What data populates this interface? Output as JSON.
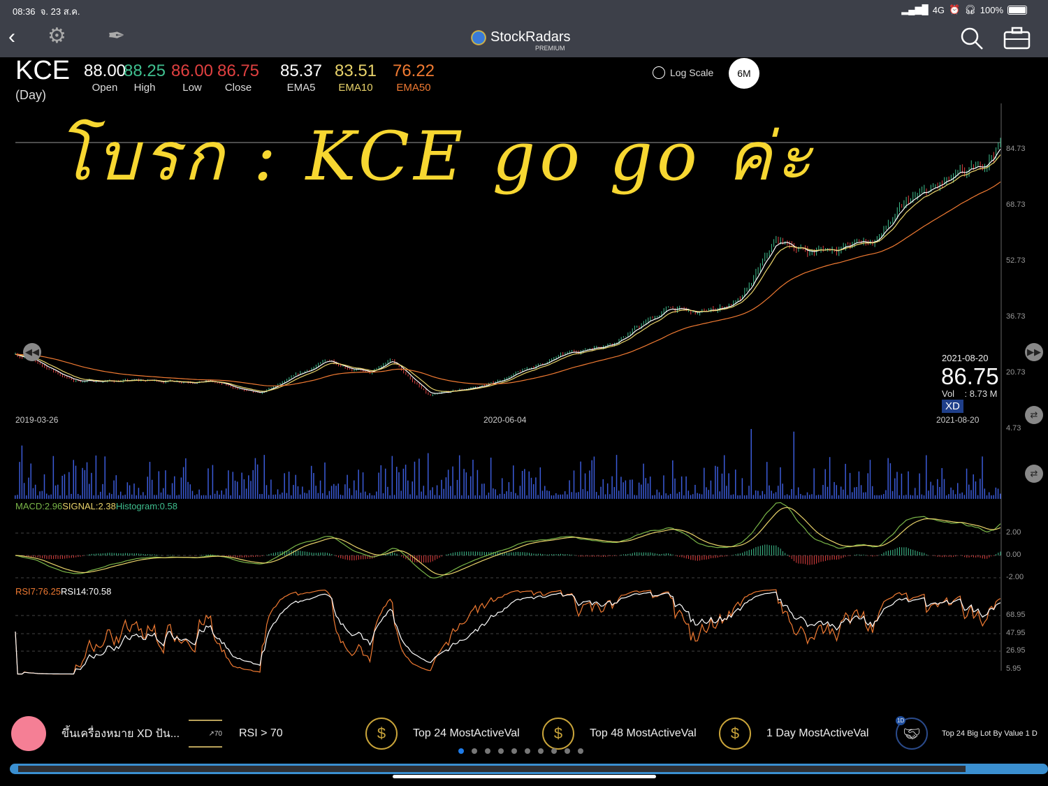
{
  "status_bar": {
    "time": "08:36",
    "date": "จ. 23 ส.ค.",
    "network": "4G",
    "battery": "100%",
    "battery_level": 1.0
  },
  "nav": {
    "back": "back-icon",
    "settings": "gear-icon",
    "draw": "pen-icon",
    "brand": "StockRadars",
    "brand_tier": "PREMIUM",
    "search": "search-icon",
    "portfolio": "briefcase-icon"
  },
  "quote": {
    "symbol": "KCE",
    "timeframe": "(Day)",
    "fields": [
      {
        "value": "88.00",
        "label": "Open",
        "color": "#ffffff"
      },
      {
        "value": "88.25",
        "label": "High",
        "color": "#3fbf8f"
      },
      {
        "value": "86.00",
        "label": "Low",
        "color": "#e04040"
      },
      {
        "value": "86.75",
        "label": "Close",
        "color": "#e04040"
      },
      {
        "value": "85.37",
        "label": "EMA5",
        "color": "#ffffff"
      },
      {
        "value": "83.51",
        "label": "EMA10",
        "color": "#e9d36a"
      },
      {
        "value": "76.22",
        "label": "EMA50",
        "color": "#f07a32"
      }
    ]
  },
  "controls": {
    "log_scale": "Log Scale",
    "log_scale_checked": false,
    "period": "6M"
  },
  "annotation": "โบรก : KCE go go ค่ะ",
  "crosshair": {
    "date": "2021-08-20",
    "price": "86.75",
    "vol_label": "Vol",
    "vol_value": ": 8.73 M",
    "badge": "XD"
  },
  "x_dates": [
    "2019-03-26",
    "2020-06-04",
    "2021-08-20"
  ],
  "indicators": {
    "macd": "MACD:2.96",
    "signal": "SIGNAL:2.38",
    "histogram": "Histogram:0.58",
    "rsi7": "RSI7:76.25",
    "rsi14": "RSI14:70.58"
  },
  "chart_data": {
    "type": "candlestick",
    "price_axis": [
      "84.73",
      "68.73",
      "52.73",
      "36.73",
      "20.73",
      "4.73"
    ],
    "price_range": [
      4.73,
      84.73
    ],
    "close_path": [
      [
        "2019-03-26",
        26.5
      ],
      [
        "2019-05-17",
        18.5
      ],
      [
        "2019-09-15",
        18.5
      ],
      [
        "2019-10-29",
        14.5
      ],
      [
        "2019-12-30",
        24.5
      ],
      [
        "2020-02-06",
        20.5
      ],
      [
        "2020-02-24",
        24.5
      ],
      [
        "2020-03-29",
        14
      ],
      [
        "2020-05-21",
        17.5
      ],
      [
        "2020-07-23",
        25.5
      ],
      [
        "2020-09-11",
        30
      ],
      [
        "2020-10-30",
        39.5
      ],
      [
        "2020-11-24",
        37.5
      ],
      [
        "2021-01-01",
        41.5
      ],
      [
        "2021-02-01",
        58.5
      ],
      [
        "2021-03-04",
        55.5
      ],
      [
        "2021-04-29",
        58.5
      ],
      [
        "2021-05-30",
        69.5
      ],
      [
        "2021-06-30",
        74.5
      ],
      [
        "2021-07-31",
        78.5
      ],
      [
        "2021-08-20",
        86.75
      ]
    ],
    "series": [
      {
        "name": "EMA5",
        "color": "#ffffff"
      },
      {
        "name": "EMA10",
        "color": "#e9d36a"
      },
      {
        "name": "EMA50",
        "color": "#f07a32"
      }
    ],
    "macd_axis": [
      "2.00",
      "0.00",
      "-2.00"
    ],
    "rsi_axis": [
      "68.95",
      "47.95",
      "26.95",
      "5.95"
    ],
    "colors": {
      "up": "#3fbf8f",
      "down": "#e04040",
      "volume": "#3b5bd8",
      "macd": "#7ab648",
      "signal": "#e9d36a",
      "rsi7": "#f07a32",
      "rsi14": "#ffffff"
    }
  },
  "carousel": {
    "items": [
      {
        "label": "ขึ้นเครื่องหมาย XD ปัน...",
        "icon": "pink-dot-icon"
      },
      {
        "label": "RSI > 70",
        "icon": "rsi-up-icon",
        "icon_text": "70"
      },
      {
        "label": "Top 24 MostActiveVal",
        "icon": "coins-icon"
      },
      {
        "label": "Top 48 MostActiveVal",
        "icon": "coins-icon"
      },
      {
        "label": "1 Day MostActiveVal",
        "icon": "coins-icon"
      },
      {
        "label": "Top 24 Big Lot By Value 1 D",
        "icon": "handshake-icon",
        "badge": "1D"
      }
    ],
    "page_count": 10,
    "active_page": 1
  }
}
